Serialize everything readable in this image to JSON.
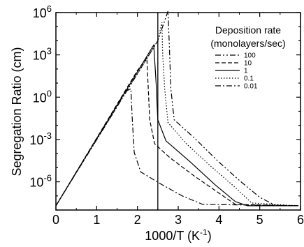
{
  "chart_data": {
    "type": "line",
    "title": "",
    "xlabel": "1000/T (K",
    "xlabel_sup": "-1",
    "xlabel_end": ")",
    "ylabel": "Segregation Ratio (cm)",
    "xlim": [
      0,
      6
    ],
    "ylim_log10": [
      -8,
      6
    ],
    "y_scale": "log",
    "grid": false,
    "x_ticks": [
      {
        "value": 0,
        "label": "0"
      },
      {
        "value": 1,
        "label": "1"
      },
      {
        "value": 2,
        "label": "2"
      },
      {
        "value": 3,
        "label": "3"
      },
      {
        "value": 4,
        "label": "4"
      },
      {
        "value": 5,
        "label": "5"
      },
      {
        "value": 6,
        "label": "6"
      }
    ],
    "y_ticks": [
      {
        "value": 6,
        "base": "10",
        "exp": "6"
      },
      {
        "value": 3,
        "base": "10",
        "exp": "3"
      },
      {
        "value": 0,
        "base": "10",
        "exp": "0"
      },
      {
        "value": -3,
        "base": "10",
        "exp": "-3"
      },
      {
        "value": -6,
        "base": "10",
        "exp": "-6"
      }
    ],
    "vertical_line_x": 2.5,
    "legend": {
      "title_line1": "Deposition rate",
      "title_line2": "(monolayers/sec)",
      "placement": "top-right"
    },
    "series": [
      {
        "name": "100",
        "dash": "8,3,2,3,2,3",
        "points": [
          [
            0,
            -7.7
          ],
          [
            2.5,
            4.0
          ],
          [
            2.75,
            6.1
          ],
          [
            2.78,
            3.8
          ],
          [
            2.82,
            0.6
          ],
          [
            2.9,
            -1.6
          ],
          [
            3.4,
            -2.9
          ],
          [
            4.0,
            -4.6
          ],
          [
            4.5,
            -5.9
          ],
          [
            5.0,
            -7.1
          ],
          [
            5.4,
            -7.7
          ],
          [
            5.95,
            -7.7
          ]
        ]
      },
      {
        "name": "10",
        "dash": "6,3",
        "points": [
          [
            0,
            -7.7
          ],
          [
            2.0,
            1.9
          ],
          [
            2.23,
            2.8
          ],
          [
            2.26,
            1.0
          ],
          [
            2.3,
            -1.6
          ],
          [
            2.42,
            -3.3
          ],
          [
            2.8,
            -4.3
          ],
          [
            3.4,
            -5.6
          ],
          [
            4.0,
            -6.8
          ],
          [
            4.4,
            -7.6
          ],
          [
            5.95,
            -7.7
          ]
        ]
      },
      {
        "name": "1",
        "dash": "",
        "points": [
          [
            0,
            -7.7
          ],
          [
            2.4,
            3.7
          ],
          [
            2.46,
            0.9
          ],
          [
            2.5,
            -1.6
          ],
          [
            2.7,
            -3.1
          ],
          [
            3.3,
            -4.6
          ],
          [
            3.9,
            -6.2
          ],
          [
            4.4,
            -7.4
          ],
          [
            4.7,
            -7.7
          ],
          [
            5.95,
            -7.7
          ]
        ]
      },
      {
        "name": "0.1",
        "dash": "1.5,2.5",
        "points": [
          [
            0,
            -7.7
          ],
          [
            2.5,
            4.0
          ],
          [
            2.6,
            5.3
          ],
          [
            2.62,
            3.0
          ],
          [
            2.67,
            0.5
          ],
          [
            2.75,
            -1.8
          ],
          [
            3.2,
            -3.3
          ],
          [
            3.8,
            -4.9
          ],
          [
            4.4,
            -6.4
          ],
          [
            4.8,
            -7.5
          ],
          [
            5.95,
            -7.7
          ]
        ]
      },
      {
        "name": "0.01",
        "dash": "8,3,2,3",
        "points": [
          [
            0,
            -7.7
          ],
          [
            1.7,
            0.4
          ],
          [
            1.84,
            0.6
          ],
          [
            1.87,
            -1.4
          ],
          [
            1.92,
            -3.9
          ],
          [
            2.08,
            -5.3
          ],
          [
            2.6,
            -6.2
          ],
          [
            3.1,
            -7.0
          ],
          [
            3.6,
            -7.6
          ],
          [
            5.95,
            -7.7
          ]
        ]
      }
    ]
  }
}
